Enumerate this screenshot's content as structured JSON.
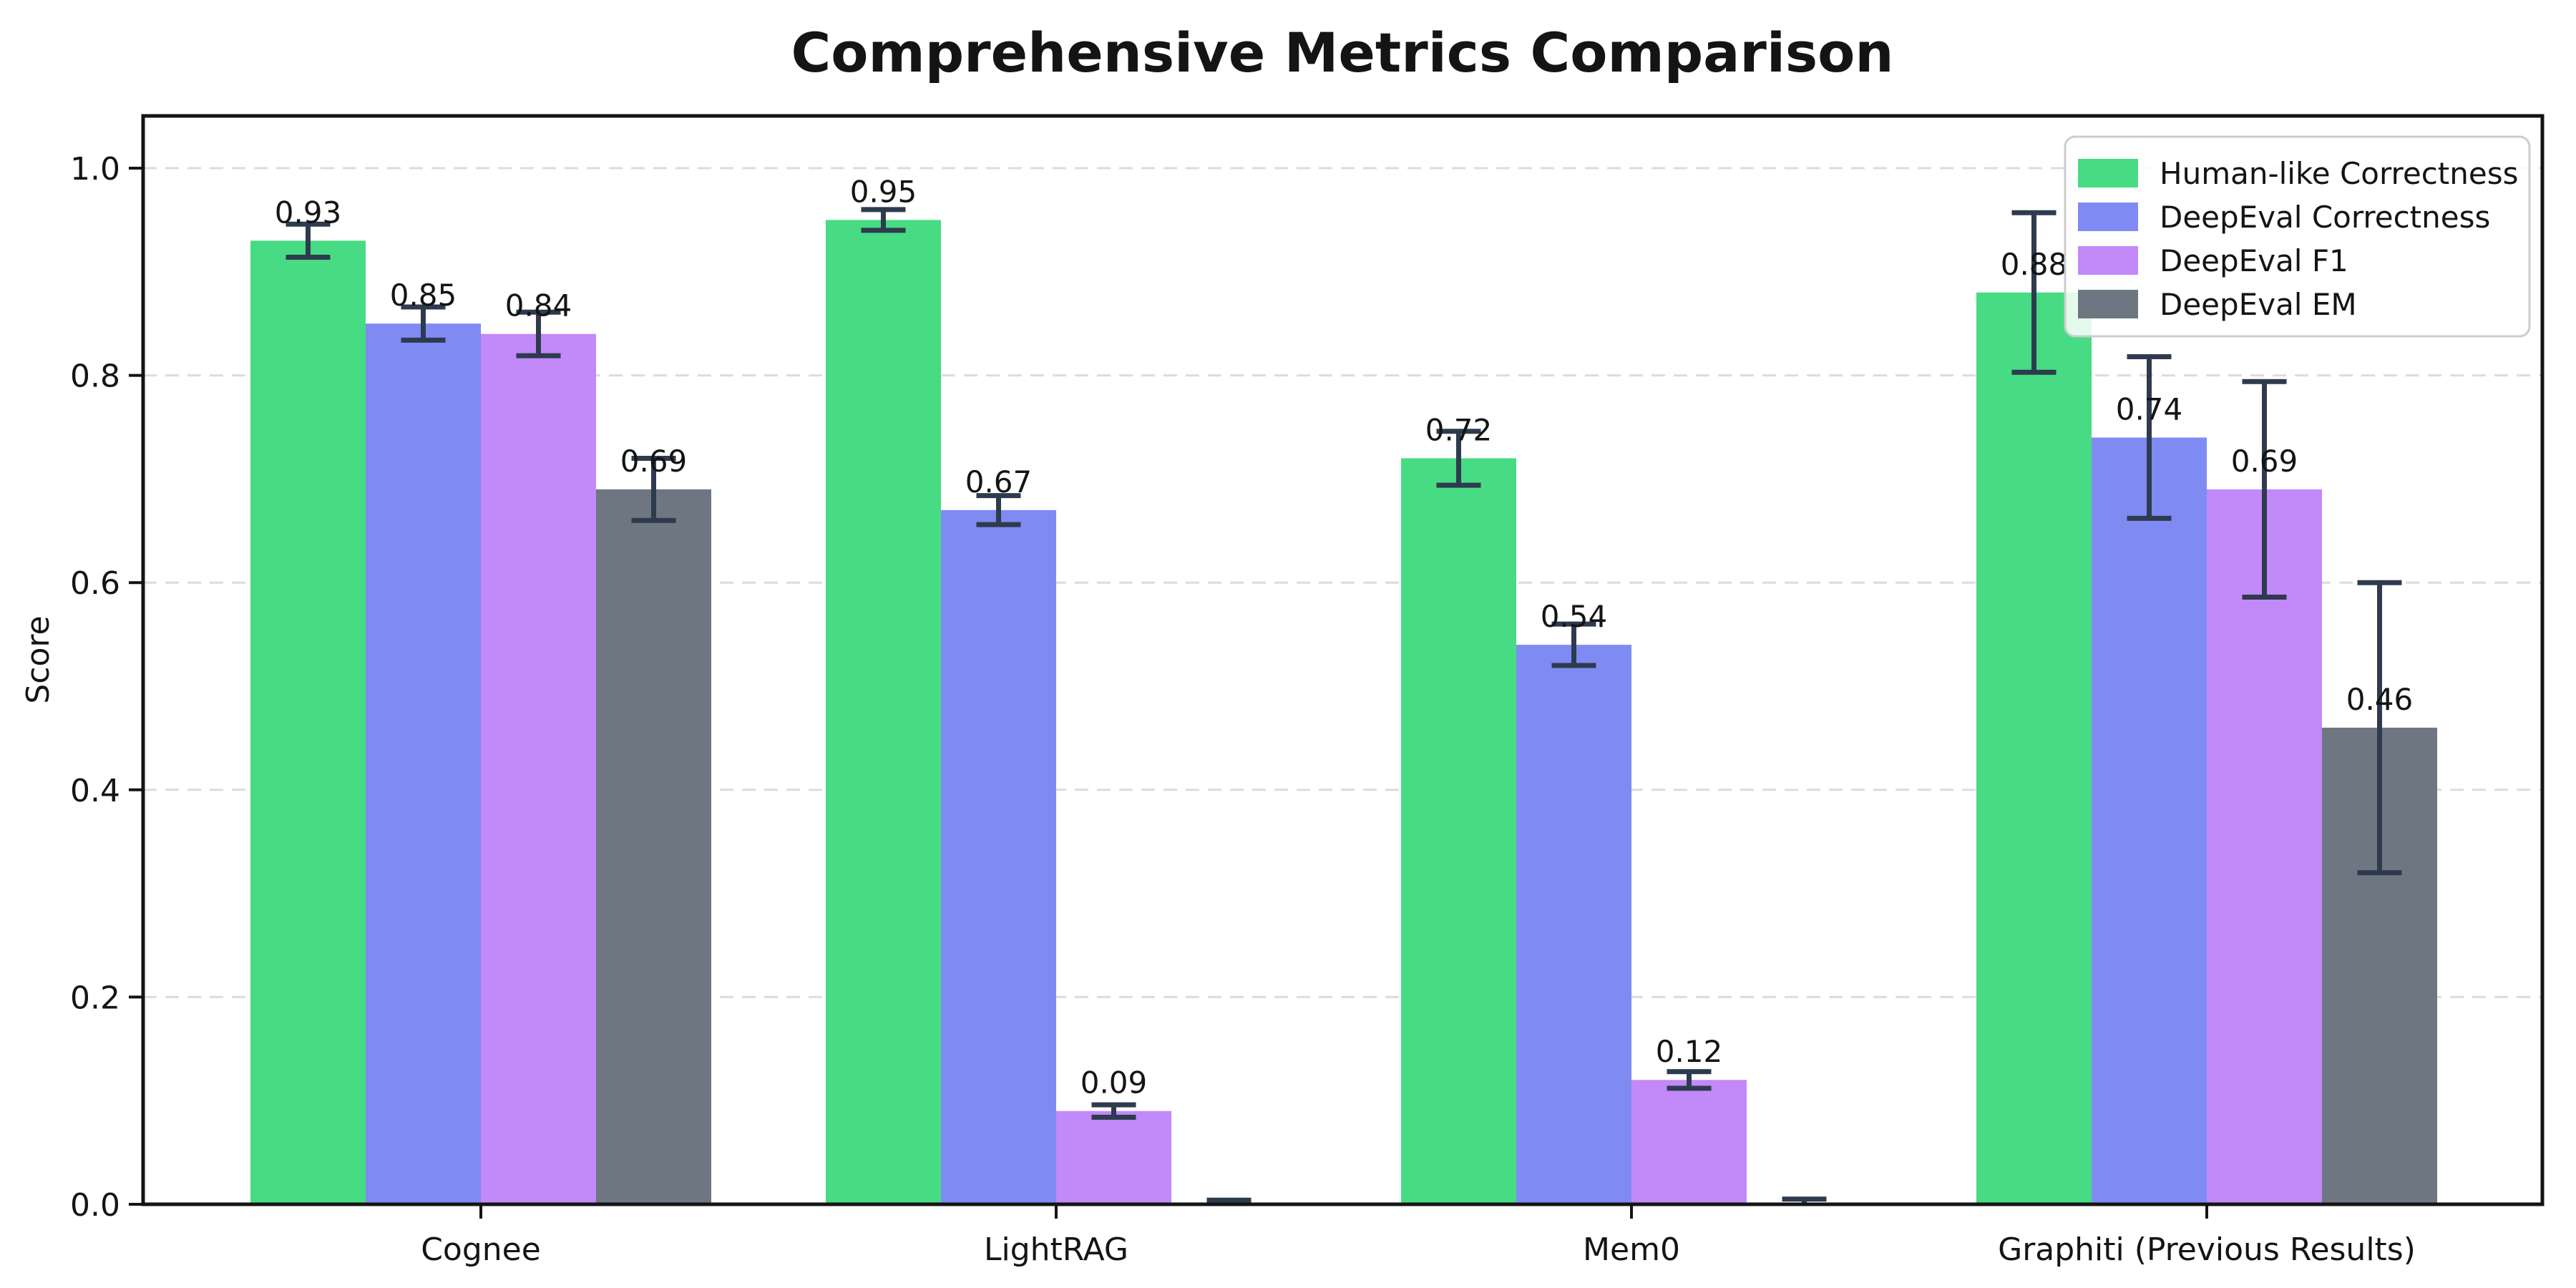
{
  "chart_data": {
    "type": "bar",
    "title": "Comprehensive Metrics Comparison",
    "xlabel": "",
    "ylabel": "Score",
    "categories": [
      "Cognee",
      "LightRAG",
      "Mem0",
      "Graphiti (Previous Results)"
    ],
    "series": [
      {
        "name": "Human-like Correctness",
        "color": "#47db83",
        "values": [
          0.93,
          0.95,
          0.72,
          0.88
        ],
        "errors": [
          0.016,
          0.01,
          0.026,
          0.077
        ],
        "labels": [
          "0.93",
          "0.95",
          "0.72",
          "0.88"
        ]
      },
      {
        "name": "DeepEval Correctness",
        "color": "#7f8bf2",
        "values": [
          0.85,
          0.67,
          0.54,
          0.74
        ],
        "errors": [
          0.016,
          0.014,
          0.02,
          0.078
        ],
        "labels": [
          "0.85",
          "0.67",
          "0.54",
          "0.74"
        ]
      },
      {
        "name": "DeepEval F1",
        "color": "#c289f8",
        "values": [
          0.84,
          0.09,
          0.12,
          0.69
        ],
        "errors": [
          0.021,
          0.006,
          0.008,
          0.104
        ],
        "labels": [
          "0.84",
          "0.09",
          "0.12",
          "0.69"
        ]
      },
      {
        "name": "DeepEval EM",
        "color": "#6e7681",
        "values": [
          0.69,
          0.0,
          0.0,
          0.46
        ],
        "errors": [
          0.03,
          0.004,
          0.005,
          0.14
        ],
        "labels": [
          "0.69",
          "",
          "",
          "0.46"
        ]
      }
    ],
    "yticks": [
      "0.0",
      "0.2",
      "0.4",
      "0.6",
      "0.8",
      "1.0"
    ],
    "ylim": [
      0.0,
      1.05
    ],
    "grid": "horizontal-dashed",
    "legend_position": "upper right",
    "style": {
      "background": "#ffffff",
      "grid_color": "#dcdcdc",
      "axis_color": "#141414",
      "errorbar_color": "#2e3b4e",
      "legend_border_color": "#cccccc",
      "legend_fill": "rgba(255,255,255,0.85)",
      "text_color": "#141414"
    }
  }
}
